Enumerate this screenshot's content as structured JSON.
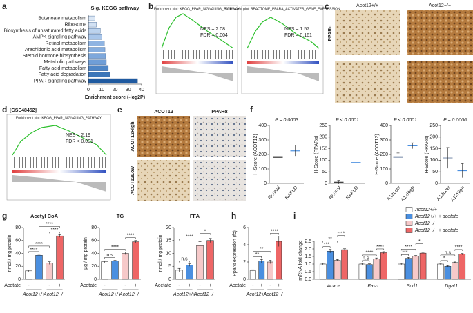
{
  "panel_labels": [
    "a",
    "b",
    "c",
    "d",
    "e",
    "f",
    "g",
    "h",
    "i"
  ],
  "gsea": [
    {
      "title": "Enrichment plot: KEGG_PPAR_SIGNALING_PATHWAY",
      "nes": "NES = 2.08",
      "fdr": "FDR = 0.004"
    },
    {
      "title": "Enrichment plot: REACTOME_PPARA_ACTIVATES_GENE_EXPRESSION",
      "nes": "NES = 1.57",
      "fdr": "FDR = 0.161"
    },
    {
      "dataset": "[GSE48452]",
      "title": "Enrichment plot: KEGG_PPAR_SIGNALING_PATHWAY",
      "nes": "NES = 2.19",
      "fdr": "FDR < 0.001"
    }
  ],
  "histology_c": {
    "columns": [
      "Acot12+/+",
      "Acot12−/−"
    ],
    "row": "PPARα"
  },
  "histology_e": {
    "columns": [
      "ACOT12",
      "PPARα"
    ],
    "rows": [
      "ACOT12High",
      "ACOT12Low"
    ]
  },
  "treatment_axis": {
    "label": "Acetate",
    "levels": [
      "-",
      "+",
      "-",
      "+"
    ],
    "groups": [
      "Acot12+/+",
      "Acot12−/−"
    ]
  },
  "chart_data": [
    {
      "type": "barh",
      "title": "Sig. KEGG pathway",
      "xlabel": "Enrichment score (-log2P)",
      "categories": [
        "Butanoate metabolism",
        "Ribosome",
        "Biosynthesis of unsaturated fatty acids",
        "AMPK signaling pathway",
        "Retinol metabolism",
        "Arachidonic acid metabolism",
        "Steroid hormone biosynthesis",
        "Metabolic pathways",
        "Fatty acid metabolism",
        "Fatty acid degradation",
        "PPAR signaling pathway"
      ],
      "values": [
        5,
        6,
        9,
        10,
        12,
        12.5,
        13,
        13.5,
        15,
        16,
        37
      ],
      "colors": [
        "#dbe7f5",
        "#d2e1f3",
        "#bcd3ee",
        "#a9c6ea",
        "#8fb4e2",
        "#86aedf",
        "#7ea8dc",
        "#6f9ed7",
        "#4f86c6",
        "#3c76b9",
        "#1f5aa0"
      ],
      "xlim": [
        0,
        40
      ],
      "xticks": [
        0,
        10,
        20,
        30,
        40
      ]
    },
    {
      "type": "dot",
      "ylabel": "H-Score (ACOT12)",
      "p_label": "P = 0.0003",
      "categories": [
        "Normal",
        "NAFLD"
      ],
      "values": [
        180,
        225
      ],
      "errors": [
        50,
        40
      ],
      "colors": [
        "#333333",
        "#4a8fe0"
      ],
      "ylim": [
        0,
        400
      ],
      "yticks": [
        0,
        100,
        200,
        300,
        400
      ]
    },
    {
      "type": "dot",
      "ylabel": "H-Score (PPARα)",
      "p_label": "P < 0.0001",
      "categories": [
        "Normal",
        "NAFLD"
      ],
      "values": [
        5,
        90
      ],
      "errors": [
        8,
        45
      ],
      "colors": [
        "#333333",
        "#4a8fe0"
      ],
      "ylim": [
        0,
        250
      ],
      "yticks": [
        0,
        50,
        100,
        150,
        200,
        250
      ]
    },
    {
      "type": "dot",
      "ylabel": "H-Score (ACOT12)",
      "p_label": "P < 0.0001",
      "categories": [
        "A12Low",
        "A12High"
      ],
      "values": [
        180,
        260
      ],
      "errors": [
        30,
        20
      ],
      "colors": [
        "#8a9bb5",
        "#4a8fe0"
      ],
      "ylim": [
        0,
        400
      ],
      "yticks": [
        0,
        100,
        200,
        300,
        400
      ]
    },
    {
      "type": "dot",
      "ylabel": "H-Score (PPARα)",
      "p_label": "P = 0.0006",
      "categories": [
        "A12Low",
        "A12High"
      ],
      "values": [
        110,
        55
      ],
      "errors": [
        45,
        30
      ],
      "colors": [
        "#8a9bb5",
        "#4a8fe0"
      ],
      "ylim": [
        0,
        250
      ],
      "yticks": [
        0,
        50,
        100,
        150,
        200,
        250
      ]
    },
    {
      "type": "bar",
      "title": "Acetyl CoA",
      "ylabel": "nmol / mg protein",
      "values": [
        13,
        37,
        25,
        67
      ],
      "errors": [
        1.5,
        1.5,
        2,
        2
      ],
      "colors": [
        "#ffffff",
        "#4a8fe0",
        "#f6c9c9",
        "#ee6666"
      ],
      "significance": [
        "****",
        "****",
        "****",
        "****"
      ],
      "ylim": [
        0,
        80
      ],
      "yticks": [
        0,
        20,
        40,
        60,
        80
      ]
    },
    {
      "type": "bar",
      "title": "TG",
      "ylabel": "µg / mg protein",
      "values": [
        27,
        28,
        40,
        58
      ],
      "errors": [
        1.5,
        1.5,
        2,
        2
      ],
      "colors": [
        "#ffffff",
        "#4a8fe0",
        "#f6c9c9",
        "#ee6666"
      ],
      "significance": [
        "n.s",
        "****",
        "****"
      ],
      "ylim": [
        0,
        80
      ],
      "yticks": [
        0,
        20,
        40,
        60,
        80
      ]
    },
    {
      "type": "bar",
      "title": "FFA",
      "ylabel": "nmol / mg protein",
      "values": [
        3.5,
        5.5,
        13,
        15
      ],
      "errors": [
        0.7,
        0.5,
        1.5,
        0.8
      ],
      "colors": [
        "#ffffff",
        "#4a8fe0",
        "#f6c9c9",
        "#ee6666"
      ],
      "significance": [
        "n.s",
        "****",
        "*"
      ],
      "ylim": [
        0,
        20
      ],
      "yticks": [
        0,
        5,
        10,
        15,
        20
      ]
    },
    {
      "type": "bar",
      "ylabel": "Pparα expression (fc)",
      "values": [
        1,
        2.1,
        2.0,
        4.4
      ],
      "errors": [
        0.1,
        0.2,
        0.2,
        0.6
      ],
      "colors": [
        "#ffffff",
        "#4a8fe0",
        "#f6c9c9",
        "#ee6666"
      ],
      "significance": [
        "**",
        "**",
        "****"
      ],
      "ylim": [
        0,
        6
      ],
      "yticks": [
        0,
        2,
        4,
        6
      ]
    },
    {
      "type": "groupbar",
      "ylabel": "mRNA fold change",
      "categories": [
        "Acaca",
        "Fasn",
        "Scd1",
        "Dgat1"
      ],
      "series": [
        {
          "name": "Acot12+/+",
          "color": "#ffffff",
          "values": [
            1,
            1,
            1,
            1
          ],
          "errors": [
            0.05,
            0.05,
            0.05,
            0.05
          ]
        },
        {
          "name": "Acot12+/+ + acetate",
          "color": "#4a8fe0",
          "values": [
            1.85,
            0.97,
            1.38,
            0.85
          ],
          "errors": [
            0.12,
            0.05,
            0.06,
            0.05
          ]
        },
        {
          "name": "Acot12−/−",
          "color": "#f6c9c9",
          "values": [
            1.25,
            1.35,
            1.52,
            1.1
          ],
          "errors": [
            0.05,
            0.05,
            0.05,
            0.04
          ]
        },
        {
          "name": "Acot12−/− + acetate",
          "color": "#ee6666",
          "values": [
            1.95,
            1.75,
            1.72,
            1.65
          ],
          "errors": [
            0.06,
            0.07,
            0.05,
            0.05
          ]
        }
      ],
      "significance": [
        [
          "***",
          "**",
          "****"
        ],
        [
          "n.s",
          "****",
          "****"
        ],
        [
          "***",
          "****",
          "*"
        ],
        [
          "*",
          "n.s",
          "****"
        ]
      ],
      "ylim": [
        0,
        2.5
      ],
      "yticks": [
        {
          "value": 0,
          "label": "0.0"
        },
        {
          "value": 0.5,
          "label": "0.5"
        },
        {
          "value": 1,
          "label": "1.0"
        },
        {
          "value": 1.5,
          "label": "1.5"
        },
        {
          "value": 2,
          "label": "2.0"
        },
        {
          "value": 2.5,
          "label": "2.5"
        }
      ]
    }
  ]
}
